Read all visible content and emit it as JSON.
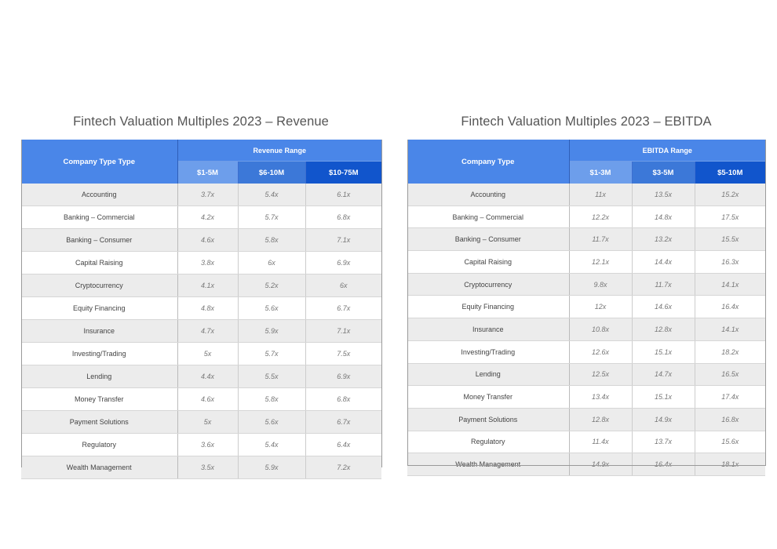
{
  "tables": [
    {
      "title": "Fintech Valuation Multiples 2023 – Revenue",
      "corner_label": "Company Type Type",
      "range_label": "Revenue Range",
      "columns": [
        "$1-5M",
        "$6-10M",
        "$10-75M"
      ],
      "rows": [
        {
          "label": "Accounting",
          "values": [
            "3.7x",
            "5.4x",
            "6.1x"
          ]
        },
        {
          "label": "Banking – Commercial",
          "values": [
            "4.2x",
            "5.7x",
            "6.8x"
          ]
        },
        {
          "label": "Banking – Consumer",
          "values": [
            "4.6x",
            "5.8x",
            "7.1x"
          ]
        },
        {
          "label": "Capital Raising",
          "values": [
            "3.8x",
            "6x",
            "6.9x"
          ]
        },
        {
          "label": "Cryptocurrency",
          "values": [
            "4.1x",
            "5.2x",
            "6x"
          ]
        },
        {
          "label": "Equity Financing",
          "values": [
            "4.8x",
            "5.6x",
            "6.7x"
          ]
        },
        {
          "label": "Insurance",
          "values": [
            "4.7x",
            "5.9x",
            "7.1x"
          ]
        },
        {
          "label": "Investing/Trading",
          "values": [
            "5x",
            "5.7x",
            "7.5x"
          ]
        },
        {
          "label": "Lending",
          "values": [
            "4.4x",
            "5.5x",
            "6.9x"
          ]
        },
        {
          "label": "Money Transfer",
          "values": [
            "4.6x",
            "5.8x",
            "6.8x"
          ]
        },
        {
          "label": "Payment Solutions",
          "values": [
            "5x",
            "5.6x",
            "6.7x"
          ]
        },
        {
          "label": "Regulatory",
          "values": [
            "3.6x",
            "5.4x",
            "6.4x"
          ]
        },
        {
          "label": "Wealth Management",
          "values": [
            "3.5x",
            "5.9x",
            "7.2x"
          ]
        }
      ]
    },
    {
      "title": "Fintech Valuation Multiples 2023 – EBITDA",
      "corner_label": "Company Type",
      "range_label": "EBITDA Range",
      "columns": [
        "$1-3M",
        "$3-5M",
        "$5-10M"
      ],
      "rows": [
        {
          "label": "Accounting",
          "values": [
            "11x",
            "13.5x",
            "15.2x"
          ]
        },
        {
          "label": "Banking – Commercial",
          "values": [
            "12.2x",
            "14.8x",
            "17.5x"
          ]
        },
        {
          "label": "Banking – Consumer",
          "values": [
            "11.7x",
            "13.2x",
            "15.5x"
          ]
        },
        {
          "label": "Capital Raising",
          "values": [
            "12.1x",
            "14.4x",
            "16.3x"
          ]
        },
        {
          "label": "Cryptocurrency",
          "values": [
            "9.8x",
            "11.7x",
            "14.1x"
          ]
        },
        {
          "label": "Equity Financing",
          "values": [
            "12x",
            "14.6x",
            "16.4x"
          ]
        },
        {
          "label": "Insurance",
          "values": [
            "10.8x",
            "12.8x",
            "14.1x"
          ]
        },
        {
          "label": "Investing/Trading",
          "values": [
            "12.6x",
            "15.1x",
            "18.2x"
          ]
        },
        {
          "label": "Lending",
          "values": [
            "12.5x",
            "14.7x",
            "16.5x"
          ]
        },
        {
          "label": "Money Transfer",
          "values": [
            "13.4x",
            "15.1x",
            "17.4x"
          ]
        },
        {
          "label": "Payment Solutions",
          "values": [
            "12.8x",
            "14.9x",
            "16.8x"
          ]
        },
        {
          "label": "Regulatory",
          "values": [
            "11.4x",
            "13.7x",
            "15.6x"
          ]
        },
        {
          "label": "Wealth Management",
          "values": [
            "14.9x",
            "16.4x",
            "18.1x"
          ]
        }
      ]
    }
  ]
}
